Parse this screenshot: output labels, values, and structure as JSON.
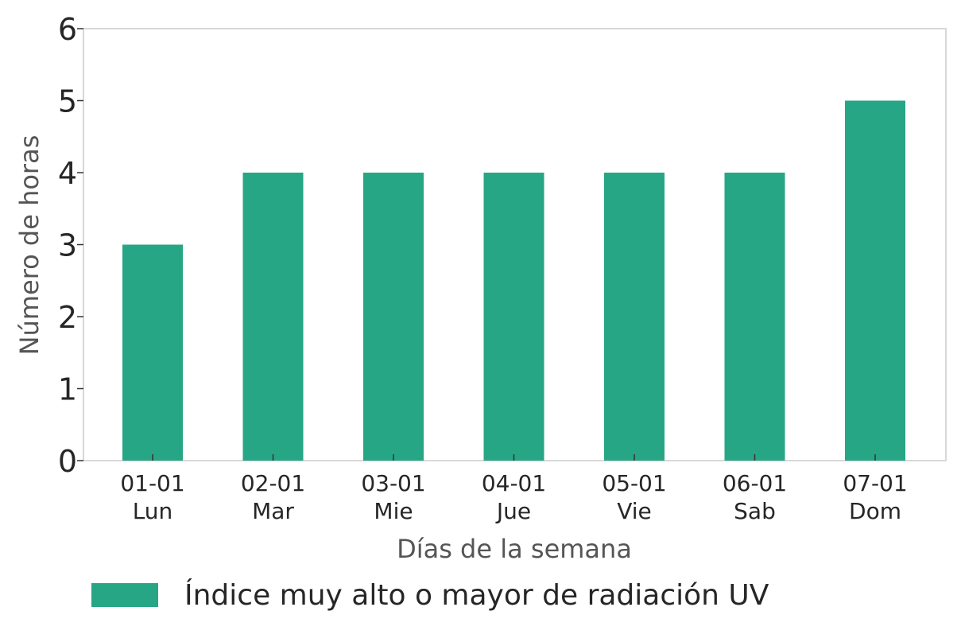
{
  "chart_data": {
    "type": "bar",
    "categories": [
      "01-01\nLun",
      "02-01\nMar",
      "03-01\nMie",
      "04-01\nJue",
      "05-01\nVie",
      "06-01\nSab",
      "07-01\nDom"
    ],
    "series": [
      {
        "name": "Índice muy alto o mayor de radiación UV",
        "values": [
          3,
          4,
          4,
          4,
          4,
          4,
          5
        ],
        "color": "#27a685"
      }
    ],
    "xlabel": "Días de la semana",
    "ylabel": "Número de horas",
    "ylim": [
      0,
      6
    ],
    "yticks": [
      0,
      1,
      2,
      3,
      4,
      5,
      6
    ],
    "grid": false,
    "legend": "bottom-left"
  },
  "colors": {
    "bar": "#27a685",
    "frame": "#cccccc",
    "text": "#262626",
    "axis_title": "#555555"
  }
}
